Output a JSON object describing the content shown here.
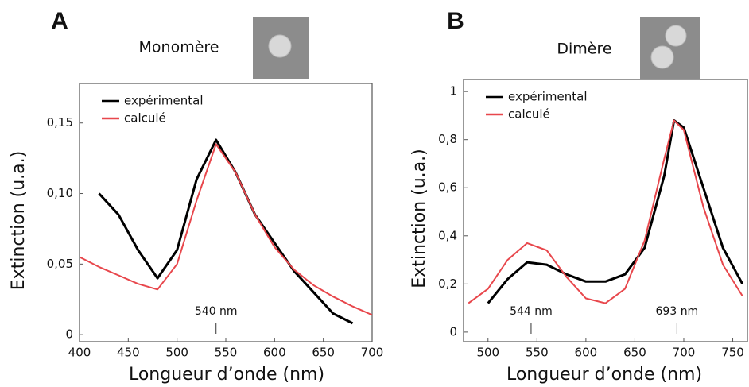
{
  "chart_data": [
    {
      "type": "line",
      "panel_label": "A",
      "title": "Monomère",
      "x_label": "Longueur d’onde (nm)",
      "y_label": "Extinction (u.a.)",
      "x": [
        400,
        420,
        440,
        460,
        480,
        500,
        520,
        540,
        560,
        580,
        600,
        620,
        640,
        660,
        680,
        700
      ],
      "series": [
        {
          "name": "expérimental",
          "color": "#000000",
          "values": [
            null,
            0.1,
            0.085,
            0.06,
            0.04,
            0.06,
            0.11,
            0.138,
            0.115,
            0.085,
            0.065,
            0.045,
            0.03,
            0.015,
            0.008,
            null
          ]
        },
        {
          "name": "calculé",
          "color": "#e8474c",
          "values": [
            0.055,
            0.048,
            0.042,
            0.036,
            0.032,
            0.05,
            0.095,
            0.135,
            0.115,
            0.085,
            0.062,
            0.046,
            0.035,
            0.027,
            0.02,
            0.014
          ]
        }
      ],
      "annotations": [
        {
          "text": "540 nm",
          "x": 540
        }
      ],
      "xlim": [
        400,
        700
      ],
      "xticks": [
        400,
        450,
        500,
        550,
        600,
        650,
        700
      ],
      "ylim": [
        -0.005,
        0.178
      ],
      "yticks": [
        0,
        {
          "value": 0.05,
          "label": "0,05"
        },
        {
          "value": 0.1,
          "label": "0,10"
        },
        {
          "value": 0.15,
          "label": "0,15"
        }
      ],
      "legend": "upper left",
      "grid": false
    },
    {
      "type": "line",
      "panel_label": "B",
      "title": "Dimère",
      "x_label": "Longueur d’onde (nm)",
      "y_label": "Extinction (u.a.)",
      "x": [
        480,
        500,
        520,
        540,
        560,
        580,
        600,
        620,
        640,
        660,
        680,
        690,
        700,
        720,
        740,
        760
      ],
      "series": [
        {
          "name": "expérimental",
          "color": "#000000",
          "values": [
            null,
            0.12,
            0.22,
            0.29,
            0.28,
            0.24,
            0.21,
            0.21,
            0.24,
            0.35,
            0.65,
            0.88,
            0.85,
            0.6,
            0.35,
            0.2
          ]
        },
        {
          "name": "calculé",
          "color": "#e8474c",
          "values": [
            0.12,
            0.18,
            0.3,
            0.37,
            0.34,
            0.23,
            0.14,
            0.12,
            0.18,
            0.38,
            0.72,
            0.88,
            0.84,
            0.52,
            0.28,
            0.15
          ]
        }
      ],
      "annotations": [
        {
          "text": "544 nm",
          "x": 544
        },
        {
          "text": "693 nm",
          "x": 693
        }
      ],
      "xlim": [
        475,
        765
      ],
      "xticks": [
        500,
        550,
        600,
        650,
        700,
        750
      ],
      "ylim": [
        -0.04,
        1.05
      ],
      "yticks": [
        0,
        {
          "value": 0.2,
          "label": "0,2"
        },
        {
          "value": 0.4,
          "label": "0,4"
        },
        {
          "value": 0.6,
          "label": "0,6"
        },
        {
          "value": 0.8,
          "label": "0,8"
        },
        1
      ],
      "legend": "upper left",
      "grid": false
    }
  ]
}
